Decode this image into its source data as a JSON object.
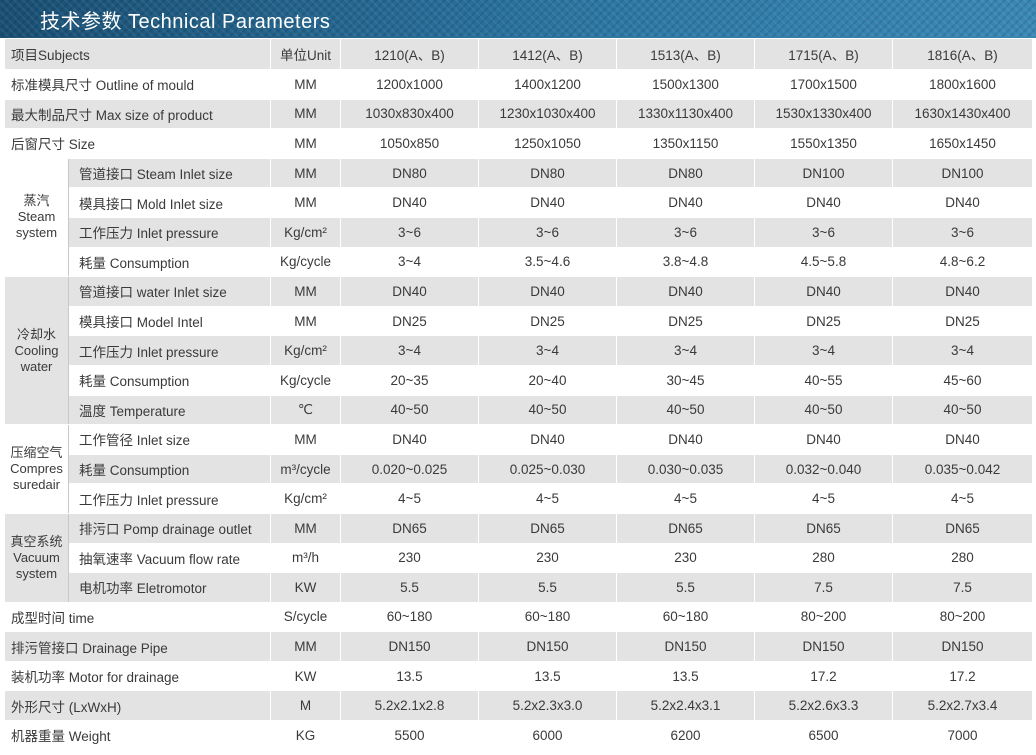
{
  "banner": {
    "title": "技术参数 Technical Parameters"
  },
  "header": {
    "subjects": "项目Subjects",
    "unit": "单位Unit",
    "models": [
      "1210(A、B)",
      "1412(A、B)",
      "1513(A、B)",
      "1715(A、B)",
      "1816(A、B)"
    ]
  },
  "rows_top": [
    {
      "label": "标准模具尺寸 Outline of mould",
      "unit": "MM",
      "values": [
        "1200x1000",
        "1400x1200",
        "1500x1300",
        "1700x1500",
        "1800x1600"
      ]
    },
    {
      "label": "最大制品尺寸 Max size of product",
      "unit": "MM",
      "values": [
        "1030x830x400",
        "1230x1030x400",
        "1330x1130x400",
        "1530x1330x400",
        "1630x1430x400"
      ]
    },
    {
      "label": "后窗尺寸 Size",
      "unit": "MM",
      "values": [
        "1050x850",
        "1250x1050",
        "1350x1150",
        "1550x1350",
        "1650x1450"
      ]
    }
  ],
  "groups": [
    {
      "name_cn": "蒸汽",
      "name_en1": "Steam",
      "name_en2": "system",
      "rows": [
        {
          "label": "管道接口 Steam Inlet size",
          "unit": "MM",
          "values": [
            "DN80",
            "DN80",
            "DN80",
            "DN100",
            "DN100"
          ]
        },
        {
          "label": "模具接口 Mold Inlet size",
          "unit": "MM",
          "values": [
            "DN40",
            "DN40",
            "DN40",
            "DN40",
            "DN40"
          ]
        },
        {
          "label": "工作压力 Inlet pressure",
          "unit": "Kg/cm²",
          "values": [
            "3~6",
            "3~6",
            "3~6",
            "3~6",
            "3~6"
          ]
        },
        {
          "label": "耗量 Consumption",
          "unit": "Kg/cycle",
          "values": [
            "3~4",
            "3.5~4.6",
            "3.8~4.8",
            "4.5~5.8",
            "4.8~6.2"
          ]
        }
      ]
    },
    {
      "name_cn": "冷却水",
      "name_en1": "Cooling",
      "name_en2": "water",
      "rows": [
        {
          "label": "管道接口 water Inlet size",
          "unit": "MM",
          "values": [
            "DN40",
            "DN40",
            "DN40",
            "DN40",
            "DN40"
          ]
        },
        {
          "label": "模具接口 Model Intel",
          "unit": "MM",
          "values": [
            "DN25",
            "DN25",
            "DN25",
            "DN25",
            "DN25"
          ]
        },
        {
          "label": "工作压力 Inlet pressure",
          "unit": "Kg/cm²",
          "values": [
            "3~4",
            "3~4",
            "3~4",
            "3~4",
            "3~4"
          ]
        },
        {
          "label": "耗量 Consumption",
          "unit": "Kg/cycle",
          "values": [
            "20~35",
            "20~40",
            "30~45",
            "40~55",
            "45~60"
          ]
        },
        {
          "label": "温度 Temperature",
          "unit": "℃",
          "values": [
            "40~50",
            "40~50",
            "40~50",
            "40~50",
            "40~50"
          ]
        }
      ]
    },
    {
      "name_cn": "压缩空气",
      "name_en1": "Compres",
      "name_en2": "suredair",
      "rows": [
        {
          "label": "工作管径 Inlet size",
          "unit": "MM",
          "values": [
            "DN40",
            "DN40",
            "DN40",
            "DN40",
            "DN40"
          ]
        },
        {
          "label": "耗量 Consumption",
          "unit": "m³/cycle",
          "values": [
            "0.020~0.025",
            "0.025~0.030",
            "0.030~0.035",
            "0.032~0.040",
            "0.035~0.042"
          ]
        },
        {
          "label": "工作压力 Inlet pressure",
          "unit": "Kg/cm²",
          "values": [
            "4~5",
            "4~5",
            "4~5",
            "4~5",
            "4~5"
          ]
        }
      ]
    },
    {
      "name_cn": "真空系统",
      "name_en1": "Vacuum",
      "name_en2": "system",
      "rows": [
        {
          "label": "排污口 Pomp drainage outlet",
          "unit": "MM",
          "values": [
            "DN65",
            "DN65",
            "DN65",
            "DN65",
            "DN65"
          ]
        },
        {
          "label": "抽氧速率 Vacuum flow rate",
          "unit": "m³/h",
          "values": [
            "230",
            "230",
            "230",
            "280",
            "280"
          ]
        },
        {
          "label": "电机功率 Eletromotor",
          "unit": "KW",
          "values": [
            "5.5",
            "5.5",
            "5.5",
            "7.5",
            "7.5"
          ]
        }
      ]
    }
  ],
  "rows_bottom": [
    {
      "label": "成型时间 time",
      "unit": "S/cycle",
      "values": [
        "60~180",
        "60~180",
        "60~180",
        "80~200",
        "80~200"
      ]
    },
    {
      "label": "排污管接口 Drainage Pipe",
      "unit": "MM",
      "values": [
        "DN150",
        "DN150",
        "DN150",
        "DN150",
        "DN150"
      ]
    },
    {
      "label": "装机功率 Motor for drainage",
      "unit": "KW",
      "values": [
        "13.5",
        "13.5",
        "13.5",
        "17.2",
        "17.2"
      ]
    },
    {
      "label": "外形尺寸 (LxWxH)",
      "unit": "M",
      "values": [
        "5.2x2.1x2.8",
        "5.2x2.3x3.0",
        "5.2x2.4x3.1",
        "5.2x2.6x3.3",
        "5.2x2.7x3.4"
      ]
    },
    {
      "label": "机器重量 Weight",
      "unit": "KG",
      "values": [
        "5500",
        "6000",
        "6200",
        "6500",
        "7000"
      ]
    }
  ],
  "colors": {
    "banner": "#1f5f87",
    "row_shade": "#e3e3e3",
    "row_plain": "#ffffff",
    "text": "#3a3a3a"
  }
}
